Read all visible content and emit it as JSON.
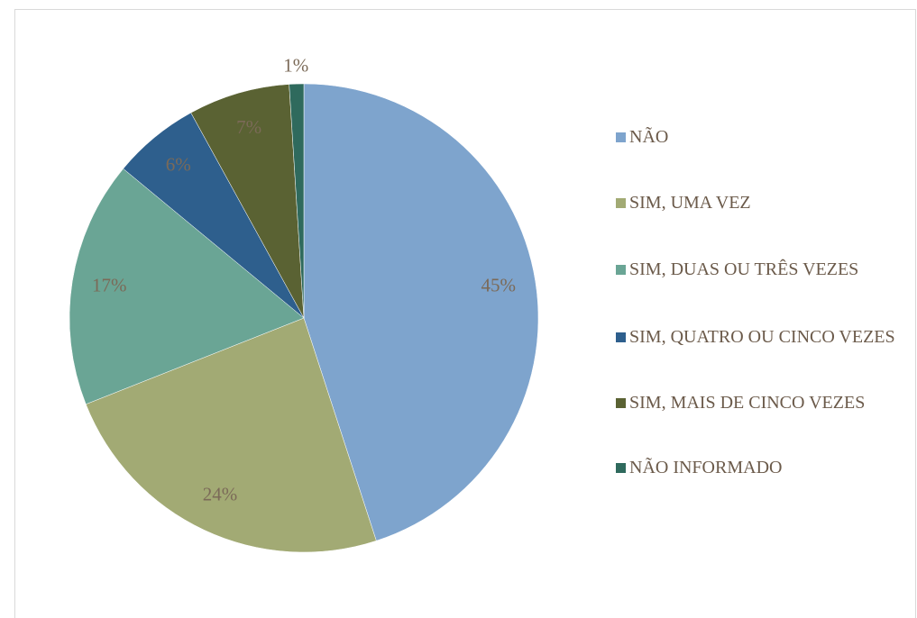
{
  "chart_data": {
    "type": "pie",
    "categories": [
      "NÃO",
      "SIM, UMA VEZ",
      "SIM, DUAS OU TRÊS VEZES",
      "SIM, QUATRO OU CINCO VEZES",
      "SIM, MAIS DE CINCO VEZES",
      "NÃO INFORMADO"
    ],
    "values": [
      45,
      24,
      17,
      6,
      7,
      1
    ],
    "value_labels": [
      "45%",
      "24%",
      "17%",
      "6%",
      "7%",
      "1%"
    ],
    "colors": [
      "#7ea4cd",
      "#a2aa74",
      "#6aa595",
      "#2e5f8d",
      "#5a6233",
      "#2f6a5d"
    ],
    "legend": "right"
  }
}
